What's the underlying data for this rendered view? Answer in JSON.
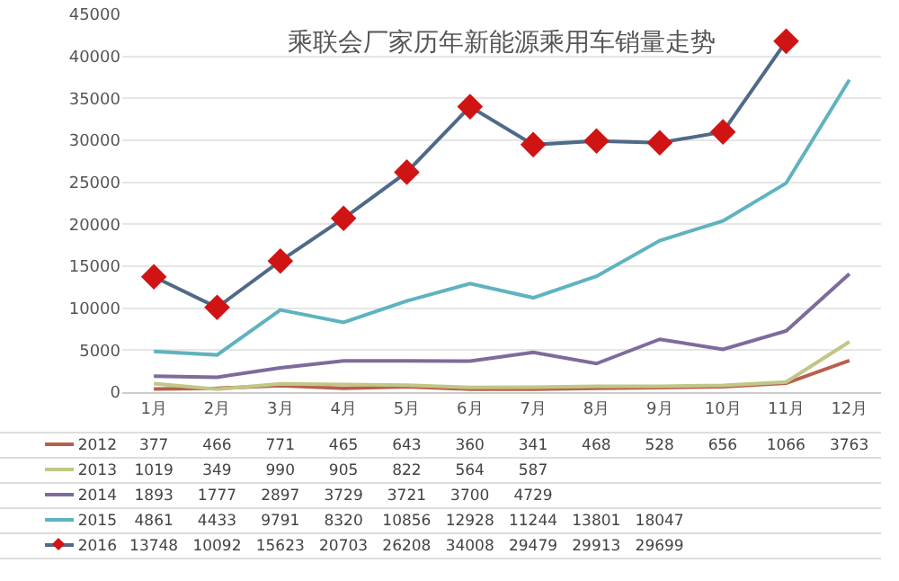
{
  "chart_data": {
    "type": "line",
    "title": "乘联会厂家历年新能源乘用车销量走势",
    "categories": [
      "1月",
      "2月",
      "3月",
      "4月",
      "5月",
      "6月",
      "7月",
      "8月",
      "9月",
      "10月",
      "11月",
      "12月"
    ],
    "ylim": [
      0,
      45000
    ],
    "yticks": [
      0,
      5000,
      10000,
      15000,
      20000,
      25000,
      30000,
      35000,
      40000,
      45000
    ],
    "grid": "y",
    "legend": "bottom",
    "series": [
      {
        "name": "2012",
        "color": "#b8604c",
        "marker": "none",
        "values": [
          377,
          466,
          771,
          465,
          643,
          360,
          341,
          468,
          528,
          656,
          1066,
          3763
        ],
        "value_labels": [
          "377",
          "466",
          "771",
          "465",
          "643",
          "360",
          "341",
          "468",
          "528",
          "656",
          "1066",
          "3763"
        ]
      },
      {
        "name": "2013",
        "color": "#c2c686",
        "marker": "none",
        "values": [
          1019,
          349,
          990,
          905,
          822,
          564,
          587,
          700,
          700,
          800,
          1200,
          6000
        ],
        "value_labels": [
          "1019",
          "349",
          "990",
          "905",
          "822",
          "564",
          "587",
          null,
          null,
          null,
          null,
          null
        ]
      },
      {
        "name": "2014",
        "color": "#7e6b9c",
        "marker": "none",
        "values": [
          1893,
          1777,
          2897,
          3729,
          3721,
          3700,
          4729,
          3400,
          6300,
          5100,
          7300,
          14100
        ],
        "value_labels": [
          "1893",
          "1777",
          "2897",
          "3729",
          "3721",
          "3700",
          "4729",
          null,
          null,
          null,
          null,
          null
        ]
      },
      {
        "name": "2015",
        "color": "#5fb3bf",
        "marker": "none",
        "values": [
          4861,
          4433,
          9791,
          8320,
          10856,
          12928,
          11244,
          13801,
          18047,
          20400,
          24900,
          37200
        ],
        "value_labels": [
          "4861",
          "4433",
          "9791",
          "8320",
          "10856",
          "12928",
          "11244",
          "13801",
          "18047",
          null,
          null,
          null
        ]
      },
      {
        "name": "2016",
        "color": "#4f6a88",
        "marker": "diamond",
        "colors": [
          "#d01414",
          "#d01414",
          "#d01414",
          "#d01414",
          "#d01414",
          "#d01414",
          "#d01414",
          "#d01414",
          "#d01414",
          "#d01414",
          "#d01414",
          "#d01414"
        ],
        "values": [
          13748,
          10092,
          15623,
          20703,
          26208,
          34008,
          29479,
          29913,
          29699,
          31000,
          41800,
          null
        ],
        "value_labels": [
          "13748",
          "10092",
          "15623",
          "20703",
          "26208",
          "34008",
          "29479",
          "29913",
          "29699",
          null,
          null,
          null
        ]
      }
    ]
  }
}
